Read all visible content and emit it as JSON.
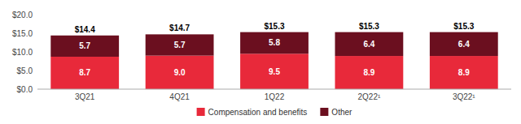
{
  "chart_data": {
    "type": "bar",
    "stacked": true,
    "categories": [
      "3Q21",
      "4Q21",
      "1Q22",
      "2Q22¹",
      "3Q22¹"
    ],
    "series": [
      {
        "name": "Compensation and benefits",
        "color": "#e8293a",
        "values": [
          8.7,
          9.0,
          9.5,
          8.9,
          8.9
        ],
        "value_labels": [
          "8.7",
          "9.0",
          "9.5",
          "8.9",
          "8.9"
        ]
      },
      {
        "name": "Other",
        "color": "#6b0f1f",
        "values": [
          5.7,
          5.7,
          5.8,
          6.4,
          6.4
        ],
        "value_labels": [
          "5.7",
          "5.7",
          "5.8",
          "6.4",
          "6.4"
        ]
      }
    ],
    "totals": [
      14.4,
      14.7,
      15.3,
      15.3,
      15.3
    ],
    "total_labels": [
      "$14.4",
      "$14.7",
      "$15.3",
      "$15.3",
      "$15.3"
    ],
    "ylim": [
      0,
      20
    ],
    "yticks": [
      {
        "value": 0,
        "label": "$0.0"
      },
      {
        "value": 5,
        "label": "$5.0"
      },
      {
        "value": 10,
        "label": "$10.0"
      },
      {
        "value": 15,
        "label": "$15.0"
      },
      {
        "value": 20,
        "label": "$20.0"
      }
    ],
    "data_labels": true,
    "grid": false,
    "legend": "bottom"
  }
}
